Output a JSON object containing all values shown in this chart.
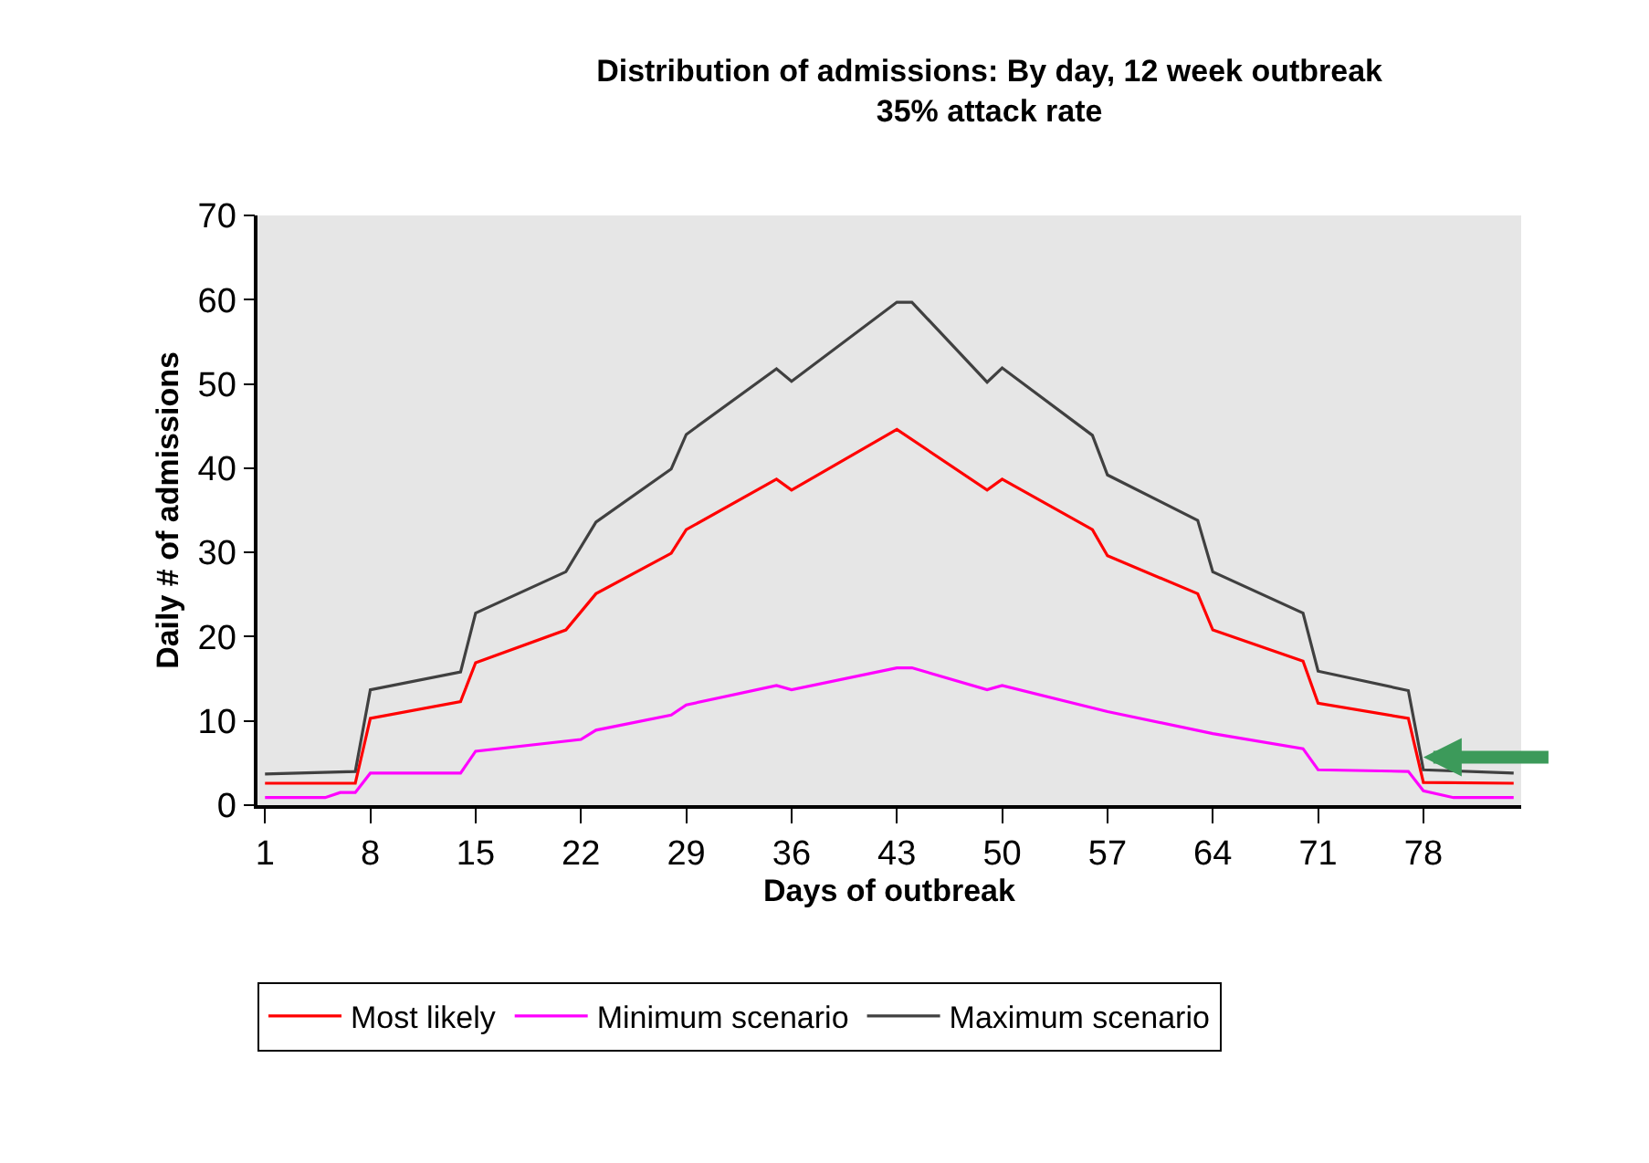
{
  "chart_data": {
    "type": "line",
    "title": "Distribution of admissions: By day, 12 week outbreak\n35% attack rate",
    "xlabel": "Days of outbreak",
    "ylabel": "Daily # of admissions",
    "xlim": [
      0.5,
      84.5
    ],
    "xticks": [
      1,
      8,
      15,
      22,
      29,
      36,
      43,
      50,
      57,
      64,
      71,
      78
    ],
    "ylim": [
      0,
      70
    ],
    "yticks": [
      0,
      10,
      20,
      30,
      40,
      50,
      60,
      70
    ],
    "grid": false,
    "legend": "bottom",
    "marker": "none",
    "line_style": "solid",
    "series": [
      {
        "name": "Most likely",
        "color": "#ff0000",
        "x": [
          1,
          7,
          8,
          14,
          15,
          21,
          23,
          28,
          29,
          35,
          36,
          43,
          49,
          50,
          56,
          57,
          63,
          64,
          70,
          71,
          77,
          78,
          84
        ],
        "values": [
          2.6,
          2.6,
          10.3,
          12.3,
          16.9,
          20.8,
          25.1,
          29.9,
          32.7,
          38.7,
          37.4,
          44.6,
          37.4,
          38.7,
          32.7,
          29.6,
          25.1,
          20.8,
          17.1,
          12.1,
          10.3,
          2.7,
          2.6
        ]
      },
      {
        "name": "Minimum scenario",
        "color": "#ff00ff",
        "x": [
          1,
          5,
          6,
          7,
          8,
          14,
          15,
          22,
          23,
          28,
          29,
          35,
          36,
          43,
          44,
          49,
          50,
          57,
          64,
          70,
          71,
          77,
          78,
          80,
          84
        ],
        "values": [
          0.9,
          0.9,
          1.5,
          1.5,
          3.8,
          3.8,
          6.4,
          7.8,
          8.9,
          10.7,
          11.9,
          14.2,
          13.7,
          16.3,
          16.3,
          13.7,
          14.2,
          11.1,
          8.5,
          6.7,
          4.2,
          4.0,
          1.7,
          0.9,
          0.9
        ]
      },
      {
        "name": "Maximum scenario",
        "color": "#404040",
        "x": [
          1,
          7,
          8,
          14,
          15,
          21,
          23,
          28,
          29,
          35,
          36,
          43,
          44,
          49,
          50,
          56,
          57,
          63,
          64,
          70,
          71,
          77,
          78,
          84
        ],
        "values": [
          3.7,
          4.0,
          13.7,
          15.8,
          22.8,
          27.7,
          33.6,
          39.9,
          44.0,
          51.8,
          50.3,
          59.7,
          59.7,
          50.2,
          51.9,
          43.9,
          39.2,
          33.8,
          27.7,
          22.8,
          15.9,
          13.6,
          4.2,
          3.8
        ]
      }
    ]
  }
}
